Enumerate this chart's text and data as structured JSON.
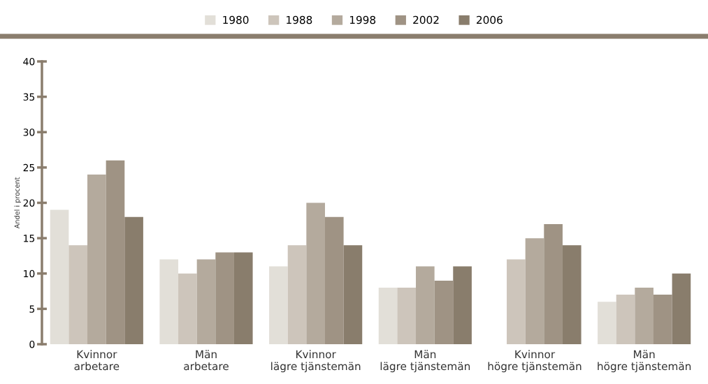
{
  "chart_data": {
    "type": "bar",
    "ylabel": "Andel i procent",
    "categories": [
      "Kvinnor\narbetare",
      "Män\narbetare",
      "Kvinnor\nlägre tjänstemän",
      "Män\nlägre tjänstemän",
      "Kvinnor\nhögre tjänstemän",
      "Män\nhögre tjänstemän"
    ],
    "series": [
      {
        "name": "1980",
        "color": "#e2dfd8",
        "values": [
          19,
          12,
          11,
          8,
          null,
          6
        ]
      },
      {
        "name": "1988",
        "color": "#cdc5bb",
        "values": [
          14,
          10,
          14,
          8,
          12,
          7
        ]
      },
      {
        "name": "1998",
        "color": "#b4aa9d",
        "values": [
          24,
          12,
          20,
          11,
          15,
          8
        ]
      },
      {
        "name": "2002",
        "color": "#9f9384",
        "values": [
          26,
          13,
          18,
          9,
          17,
          7
        ]
      },
      {
        "name": "2006",
        "color": "#897d6c",
        "values": [
          18,
          13,
          14,
          11,
          14,
          10
        ]
      }
    ],
    "ylim": [
      0,
      40
    ],
    "yticks": [
      0,
      5,
      10,
      15,
      20,
      25,
      30,
      35,
      40
    ],
    "grid": false,
    "legend": "top"
  }
}
